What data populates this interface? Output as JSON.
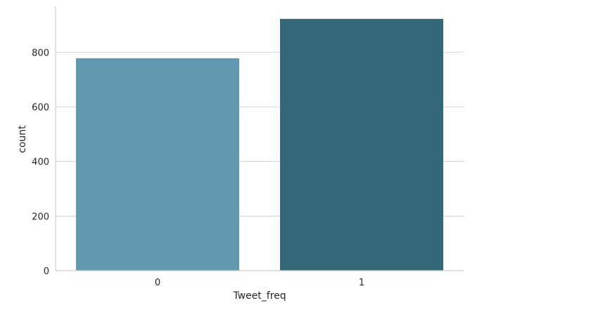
{
  "chart_data": {
    "type": "bar",
    "categories": [
      "0",
      "1"
    ],
    "values": [
      778,
      922
    ],
    "xlabel": "Tweet_freq",
    "ylabel": "count",
    "ylim": [
      0,
      968
    ],
    "yticks": [
      0,
      200,
      400,
      600,
      800
    ],
    "grid": "horizontal",
    "bar_colors": [
      "#6199b0",
      "#346879"
    ]
  },
  "colors": {
    "grid": "#d0d0d0",
    "axis": "#cccccc",
    "text": "#262626"
  }
}
